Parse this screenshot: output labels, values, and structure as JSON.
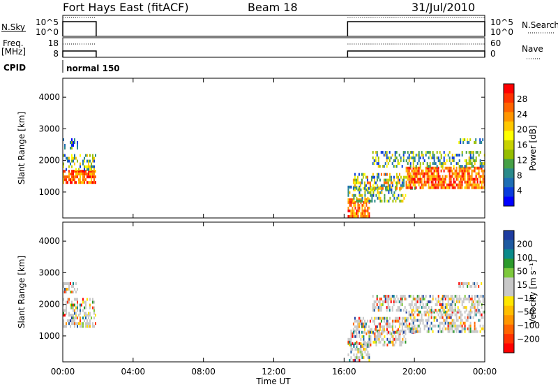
{
  "header": {
    "title": "Fort Hays East (fitACF)",
    "beam": "Beam 18",
    "date": "31/Jul/2010"
  },
  "status_panels": {
    "nsky_label": "N.Sky",
    "nsky_ticks": [
      "10^5",
      "10^0"
    ],
    "nsearch_label": "N.Search",
    "nsearch_ticks": [
      "10^5",
      "10^0"
    ],
    "freq_label": "Freq.",
    "freq_unit": "[MHz]",
    "freq_ticks": [
      "18",
      "8"
    ],
    "nave_label": "Nave",
    "nave_ticks": [
      "60",
      "0"
    ],
    "cpid_label": "CPID",
    "cpid_value": "normal 150"
  },
  "time_axis": {
    "label": "Time UT",
    "ticks": [
      "00:00",
      "04:00",
      "08:00",
      "12:00",
      "16:00",
      "20:00",
      "00:00"
    ]
  },
  "power_colorbar": {
    "label": "Power [dB]",
    "ticks": [
      "28",
      "24",
      "20",
      "16",
      "12",
      "8",
      "4"
    ],
    "colors": [
      "#ff0000",
      "#ff3200",
      "#ff6400",
      "#ff9600",
      "#ffc800",
      "#ffff00",
      "#c8d200",
      "#96be00",
      "#46a046",
      "#2a8a8a",
      "#1e6eb4",
      "#0a3cdc",
      "#0000ff"
    ]
  },
  "velocity_colorbar": {
    "label": "Velocity [m s⁻¹]",
    "ticks": [
      "200",
      "100",
      "50",
      "15",
      "−15",
      "−50",
      "−100",
      "−200"
    ],
    "colors": [
      "#1e3ca0",
      "#1e5aa0",
      "#0a8a8a",
      "#2c9a2c",
      "#7dc83c",
      "#c8c8c8",
      "#c8c8c8",
      "#ffe600",
      "#ffbe00",
      "#ff9600",
      "#ff6400",
      "#ff3200",
      "#ff0000"
    ]
  },
  "chart_data": [
    {
      "type": "heatmap",
      "title": "",
      "xlabel": "Time UT",
      "ylabel": "Slant Range [km]",
      "xlim_hours": [
        0,
        24
      ],
      "ylim_km": [
        180,
        4600
      ],
      "yticks": [
        "1000",
        "2000",
        "3000",
        "4000"
      ],
      "colorbar": "Power [dB]",
      "data_intervals_hours": [
        [
          0.0,
          1.9
        ],
        [
          16.2,
          24.0
        ]
      ],
      "echo_regions": [
        {
          "t": [
            0.0,
            1.9
          ],
          "range_km": [
            1300,
            1700
          ],
          "level": "high"
        },
        {
          "t": [
            0.0,
            1.9
          ],
          "range_km": [
            1700,
            2200
          ],
          "level": "mid"
        },
        {
          "t": [
            0.0,
            0.8
          ],
          "range_km": [
            2400,
            2700
          ],
          "level": "low"
        },
        {
          "t": [
            16.2,
            17.4
          ],
          "range_km": [
            250,
            800
          ],
          "level": "high"
        },
        {
          "t": [
            16.2,
            19.5
          ],
          "range_km": [
            700,
            1200
          ],
          "level": "mid"
        },
        {
          "t": [
            16.5,
            20.0
          ],
          "range_km": [
            1100,
            1600
          ],
          "level": "mixed"
        },
        {
          "t": [
            19.5,
            24.0
          ],
          "range_km": [
            1150,
            1800
          ],
          "level": "high"
        },
        {
          "t": [
            17.6,
            24.0
          ],
          "range_km": [
            1800,
            2300
          ],
          "level": "mid"
        },
        {
          "t": [
            22.5,
            24.0
          ],
          "range_km": [
            2550,
            2700
          ],
          "level": "mid"
        }
      ]
    },
    {
      "type": "heatmap",
      "title": "",
      "xlabel": "Time UT",
      "ylabel": "Slant Range [km]",
      "xlim_hours": [
        0,
        24
      ],
      "ylim_km": [
        180,
        4600
      ],
      "yticks": [
        "1000",
        "2000",
        "3000",
        "4000"
      ],
      "colorbar": "Velocity [m s⁻¹]",
      "data_intervals_hours": [
        [
          0.0,
          1.9
        ],
        [
          16.2,
          24.0
        ]
      ],
      "echo_regions": [
        {
          "t": [
            0.0,
            1.9
          ],
          "range_km": [
            1300,
            1700
          ],
          "level": "mixed"
        },
        {
          "t": [
            0.0,
            1.9
          ],
          "range_km": [
            1700,
            2200
          ],
          "level": "mixed"
        },
        {
          "t": [
            0.0,
            0.8
          ],
          "range_km": [
            2400,
            2700
          ],
          "level": "mixed"
        },
        {
          "t": [
            16.2,
            17.4
          ],
          "range_km": [
            250,
            800
          ],
          "level": "mixed"
        },
        {
          "t": [
            16.2,
            19.5
          ],
          "range_km": [
            700,
            1200
          ],
          "level": "mixed"
        },
        {
          "t": [
            16.5,
            20.0
          ],
          "range_km": [
            1100,
            1600
          ],
          "level": "mixed"
        },
        {
          "t": [
            19.5,
            24.0
          ],
          "range_km": [
            1150,
            1800
          ],
          "level": "mixed"
        },
        {
          "t": [
            17.6,
            24.0
          ],
          "range_km": [
            1800,
            2300
          ],
          "level": "mixed"
        },
        {
          "t": [
            22.5,
            24.0
          ],
          "range_km": [
            2550,
            2700
          ],
          "level": "mixed"
        }
      ]
    }
  ]
}
